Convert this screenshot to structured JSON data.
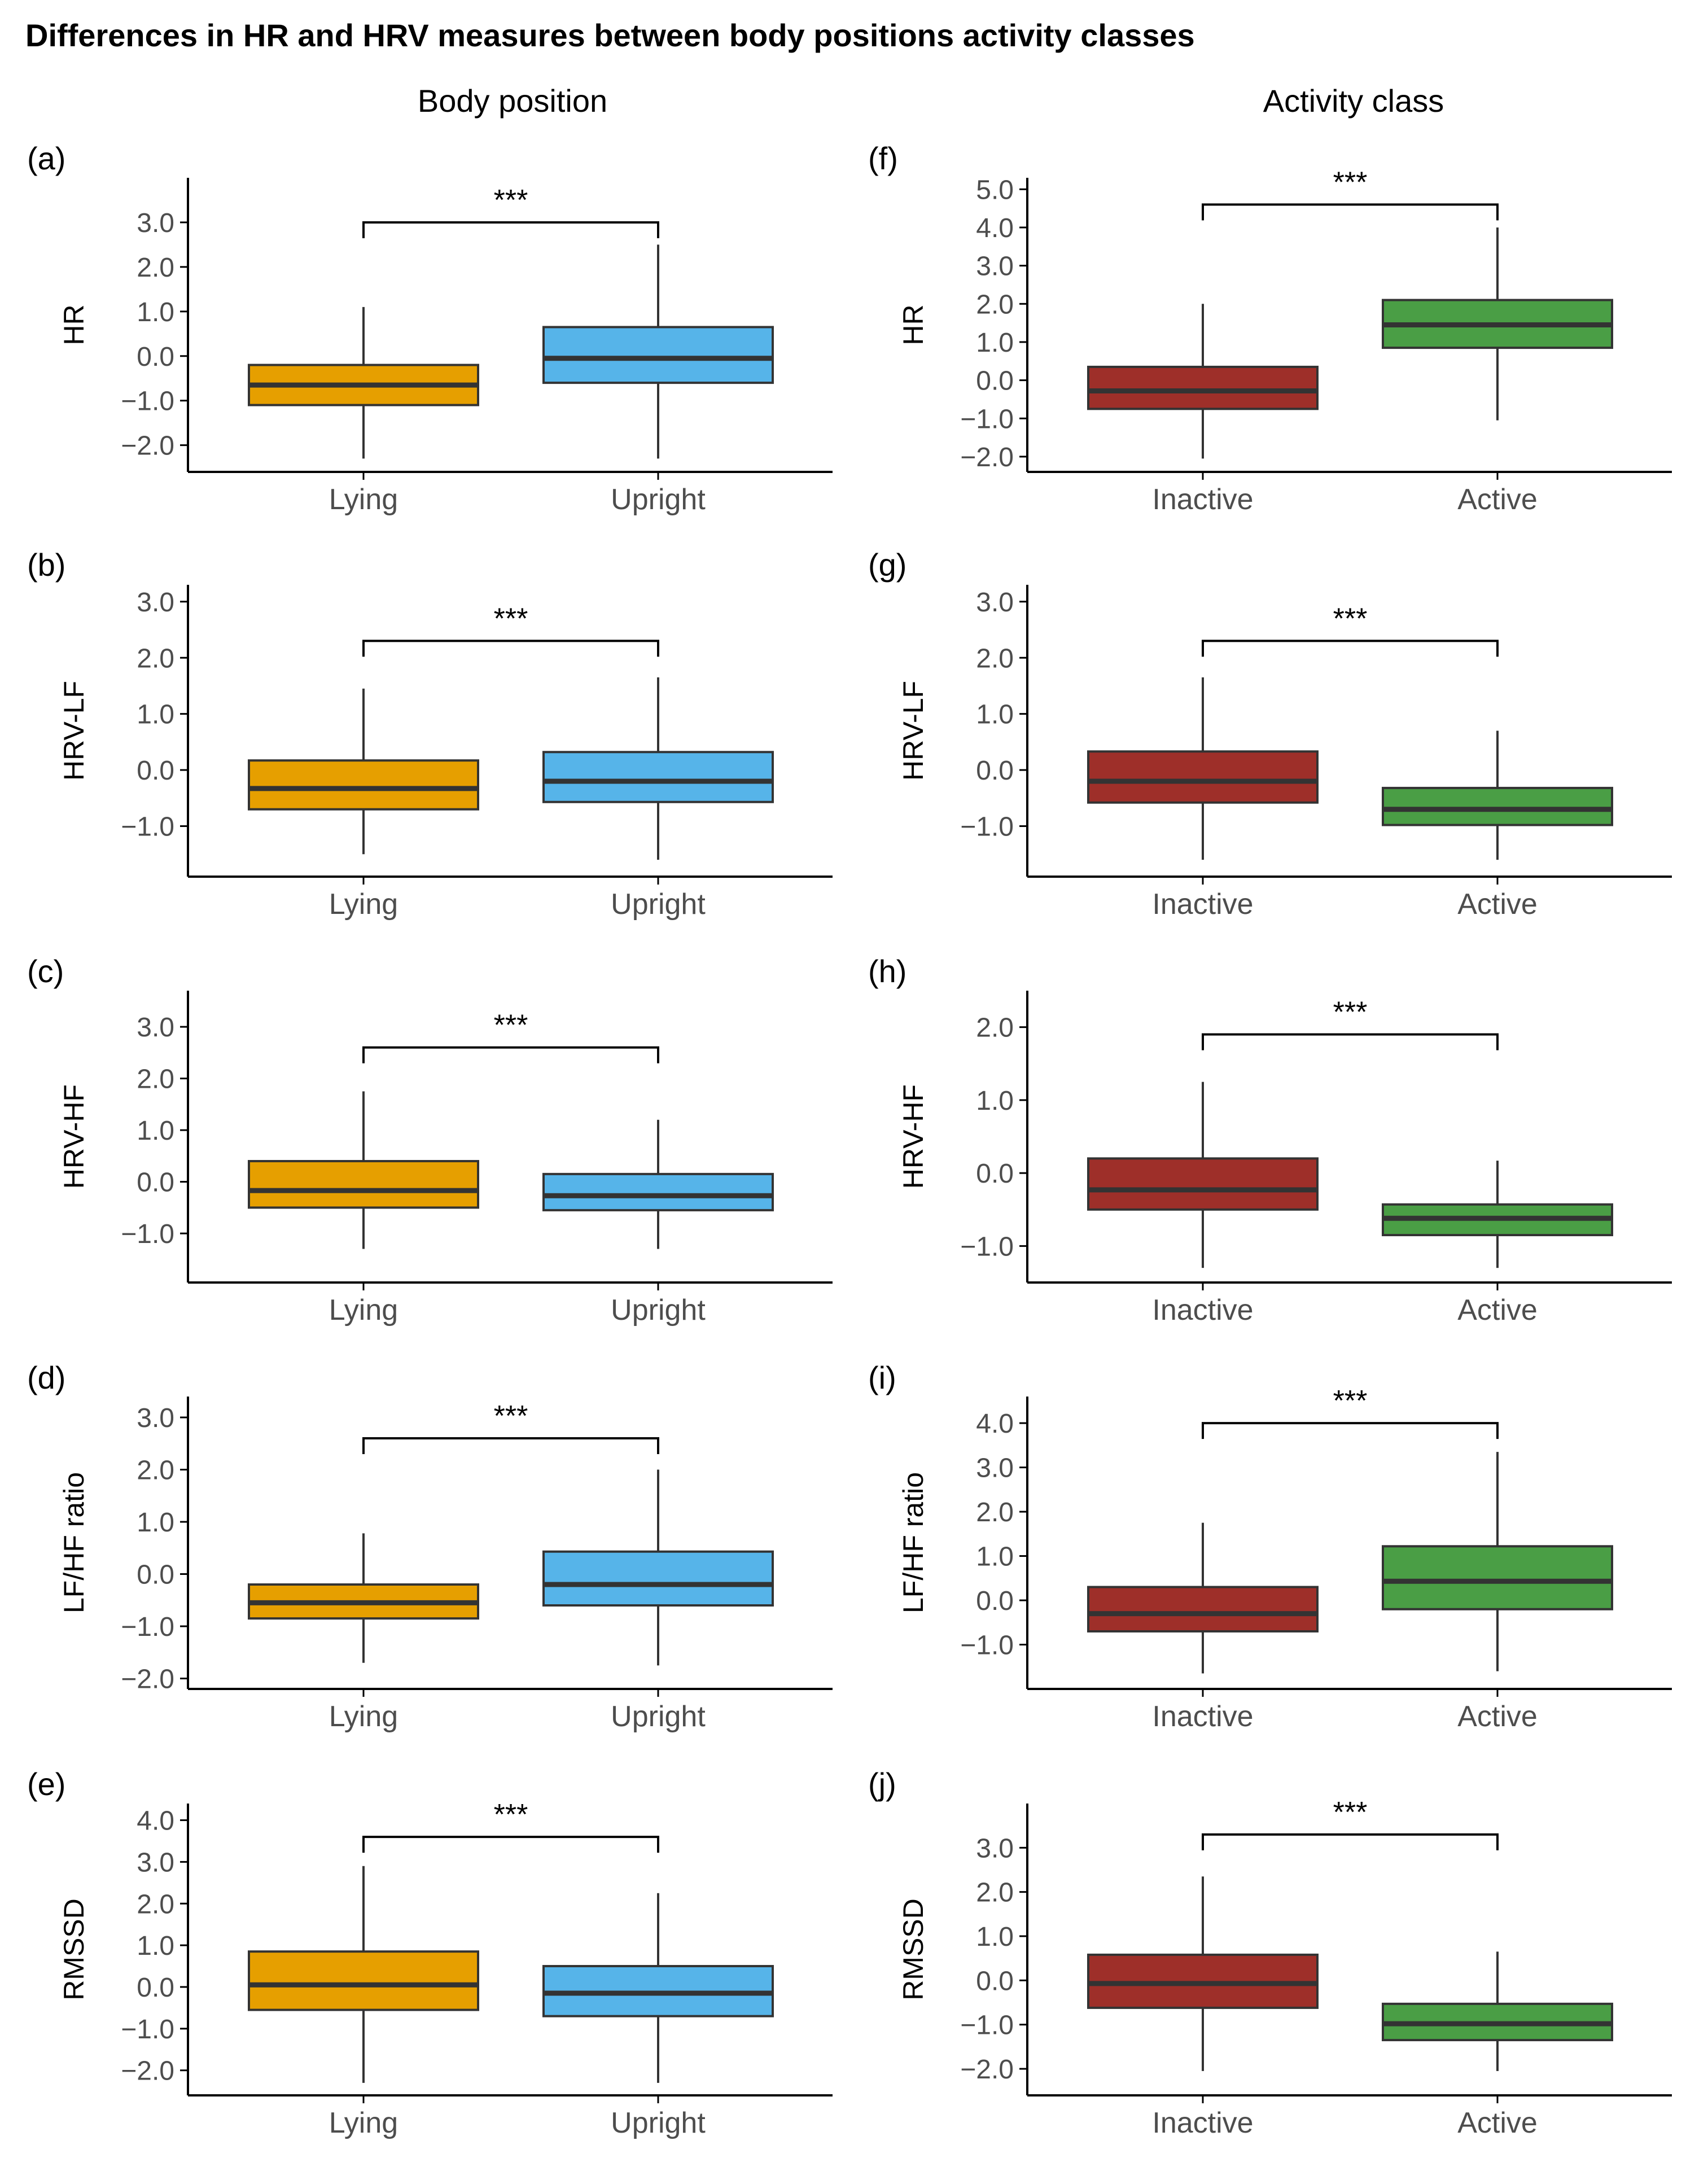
{
  "figure": {
    "title": "Differences in HR and HRV measures between body positions activity classes",
    "column_titles": [
      "Body position",
      "Activity class"
    ]
  },
  "colors": {
    "lying": "#E69F00",
    "upright": "#56B4E9",
    "inactive": "#9E2F29",
    "active": "#4A9E45",
    "axis": "#000000",
    "tick_label": "#4D4D4D",
    "median": "#333333"
  },
  "chart_data": [
    {
      "type": "boxplot",
      "panel_label": "(a)",
      "ylabel": "HR",
      "categories": [
        "Lying",
        "Upright"
      ],
      "significance": "***",
      "bracket_y": 3.0,
      "ylim": [
        -2.6,
        4.0
      ],
      "yticks": [
        -2,
        -1,
        0,
        1,
        2,
        3
      ],
      "tick_labels": [
        "−2.0",
        "−1.0",
        "0.0",
        "1.0",
        "2.0",
        "3.0"
      ],
      "boxes": [
        {
          "min": -2.3,
          "q1": -1.1,
          "median": -0.65,
          "q3": -0.2,
          "max": 1.1
        },
        {
          "min": -2.3,
          "q1": -0.6,
          "median": -0.05,
          "q3": 0.65,
          "max": 2.5
        }
      ]
    },
    {
      "type": "boxplot",
      "panel_label": "(b)",
      "ylabel": "HRV-LF",
      "categories": [
        "Lying",
        "Upright"
      ],
      "significance": "***",
      "bracket_y": 2.3,
      "ylim": [
        -1.9,
        3.3
      ],
      "yticks": [
        -1,
        0,
        1,
        2,
        3
      ],
      "tick_labels": [
        "−1.0",
        "0.0",
        "1.0",
        "2.0",
        "3.0"
      ],
      "boxes": [
        {
          "min": -1.5,
          "q1": -0.7,
          "median": -0.33,
          "q3": 0.17,
          "max": 1.45
        },
        {
          "min": -1.6,
          "q1": -0.57,
          "median": -0.2,
          "q3": 0.32,
          "max": 1.65
        }
      ]
    },
    {
      "type": "boxplot",
      "panel_label": "(c)",
      "ylabel": "HRV-HF",
      "categories": [
        "Lying",
        "Upright"
      ],
      "significance": "***",
      "bracket_y": 2.6,
      "ylim": [
        -1.95,
        3.7
      ],
      "yticks": [
        -1,
        0,
        1,
        2,
        3
      ],
      "tick_labels": [
        "−1.0",
        "0.0",
        "1.0",
        "2.0",
        "3.0"
      ],
      "boxes": [
        {
          "min": -1.3,
          "q1": -0.5,
          "median": -0.17,
          "q3": 0.4,
          "max": 1.75
        },
        {
          "min": -1.3,
          "q1": -0.55,
          "median": -0.27,
          "q3": 0.15,
          "max": 1.2
        }
      ]
    },
    {
      "type": "boxplot",
      "panel_label": "(d)",
      "ylabel": "LF/HF ratio",
      "categories": [
        "Lying",
        "Upright"
      ],
      "significance": "***",
      "bracket_y": 2.6,
      "ylim": [
        -2.2,
        3.4
      ],
      "yticks": [
        -2,
        -1,
        0,
        1,
        2,
        3
      ],
      "tick_labels": [
        "−2.0",
        "−1.0",
        "0.0",
        "1.0",
        "2.0",
        "3.0"
      ],
      "boxes": [
        {
          "min": -1.7,
          "q1": -0.85,
          "median": -0.55,
          "q3": -0.2,
          "max": 0.78
        },
        {
          "min": -1.75,
          "q1": -0.6,
          "median": -0.2,
          "q3": 0.43,
          "max": 2.0
        }
      ]
    },
    {
      "type": "boxplot",
      "panel_label": "(e)",
      "ylabel": "RMSSD",
      "categories": [
        "Lying",
        "Upright"
      ],
      "significance": "***",
      "bracket_y": 3.6,
      "ylim": [
        -2.6,
        4.4
      ],
      "yticks": [
        -2,
        -1,
        0,
        1,
        2,
        3,
        4
      ],
      "tick_labels": [
        "−2.0",
        "−1.0",
        "0.0",
        "1.0",
        "2.0",
        "3.0",
        "4.0"
      ],
      "boxes": [
        {
          "min": -2.3,
          "q1": -0.55,
          "median": 0.05,
          "q3": 0.85,
          "max": 2.9
        },
        {
          "min": -2.3,
          "q1": -0.7,
          "median": -0.15,
          "q3": 0.5,
          "max": 2.25
        }
      ]
    },
    {
      "type": "boxplot",
      "panel_label": "(f)",
      "ylabel": "HR",
      "categories": [
        "Inactive",
        "Active"
      ],
      "significance": "***",
      "bracket_y": 4.6,
      "ylim": [
        -2.4,
        5.3
      ],
      "yticks": [
        -2,
        -1,
        0,
        1,
        2,
        3,
        4,
        5
      ],
      "tick_labels": [
        "−2.0",
        "−1.0",
        "0.0",
        "1.0",
        "2.0",
        "3.0",
        "4.0",
        "5.0"
      ],
      "boxes": [
        {
          "min": -2.05,
          "q1": -0.75,
          "median": -0.28,
          "q3": 0.35,
          "max": 2.0
        },
        {
          "min": -1.05,
          "q1": 0.85,
          "median": 1.45,
          "q3": 2.1,
          "max": 4.0
        }
      ]
    },
    {
      "type": "boxplot",
      "panel_label": "(g)",
      "ylabel": "HRV-LF",
      "categories": [
        "Inactive",
        "Active"
      ],
      "significance": "***",
      "bracket_y": 2.3,
      "ylim": [
        -1.9,
        3.3
      ],
      "yticks": [
        -1,
        0,
        1,
        2,
        3
      ],
      "tick_labels": [
        "−1.0",
        "0.0",
        "1.0",
        "2.0",
        "3.0"
      ],
      "boxes": [
        {
          "min": -1.6,
          "q1": -0.58,
          "median": -0.2,
          "q3": 0.33,
          "max": 1.65
        },
        {
          "min": -1.6,
          "q1": -0.98,
          "median": -0.7,
          "q3": -0.32,
          "max": 0.7
        }
      ]
    },
    {
      "type": "boxplot",
      "panel_label": "(h)",
      "ylabel": "HRV-HF",
      "categories": [
        "Inactive",
        "Active"
      ],
      "significance": "***",
      "bracket_y": 1.9,
      "ylim": [
        -1.5,
        2.5
      ],
      "yticks": [
        -1,
        0,
        1,
        2
      ],
      "tick_labels": [
        "−1.0",
        "0.0",
        "1.0",
        "2.0"
      ],
      "boxes": [
        {
          "min": -1.3,
          "q1": -0.5,
          "median": -0.23,
          "q3": 0.2,
          "max": 1.25
        },
        {
          "min": -1.3,
          "q1": -0.85,
          "median": -0.62,
          "q3": -0.43,
          "max": 0.17
        }
      ]
    },
    {
      "type": "boxplot",
      "panel_label": "(i)",
      "ylabel": "LF/HF ratio",
      "categories": [
        "Inactive",
        "Active"
      ],
      "significance": "***",
      "bracket_y": 4.0,
      "ylim": [
        -2.0,
        4.6
      ],
      "yticks": [
        -1,
        0,
        1,
        2,
        3,
        4
      ],
      "tick_labels": [
        "−1.0",
        "0.0",
        "1.0",
        "2.0",
        "3.0",
        "4.0"
      ],
      "boxes": [
        {
          "min": -1.65,
          "q1": -0.7,
          "median": -0.3,
          "q3": 0.3,
          "max": 1.75
        },
        {
          "min": -1.6,
          "q1": -0.2,
          "median": 0.43,
          "q3": 1.22,
          "max": 3.35
        }
      ]
    },
    {
      "type": "boxplot",
      "panel_label": "(j)",
      "ylabel": "RMSSD",
      "categories": [
        "Inactive",
        "Active"
      ],
      "significance": "***",
      "bracket_y": 3.3,
      "ylim": [
        -2.6,
        4.0
      ],
      "yticks": [
        -2,
        -1,
        0,
        1,
        2,
        3
      ],
      "tick_labels": [
        "−2.0",
        "−1.0",
        "0.0",
        "1.0",
        "2.0",
        "3.0"
      ],
      "boxes": [
        {
          "min": -2.05,
          "q1": -0.62,
          "median": -0.07,
          "q3": 0.58,
          "max": 2.35
        },
        {
          "min": -2.05,
          "q1": -1.35,
          "median": -0.98,
          "q3": -0.53,
          "max": 0.65
        }
      ]
    }
  ]
}
